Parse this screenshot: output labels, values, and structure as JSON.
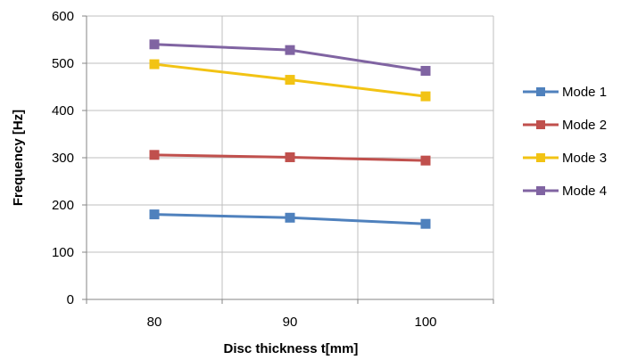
{
  "chart_data": {
    "type": "line",
    "xlabel": "Disc thickness t[mm]",
    "ylabel": "Frequency [Hz]",
    "categories": [
      "80",
      "90",
      "100"
    ],
    "ylim": [
      0,
      600
    ],
    "yticks": [
      "0",
      "100",
      "200",
      "300",
      "400",
      "500",
      "600"
    ],
    "grid": true,
    "legend_position": "right",
    "series": [
      {
        "name": "Mode 1",
        "color": "#4F81BD",
        "values": [
          180,
          173,
          160
        ]
      },
      {
        "name": "Mode 2",
        "color": "#C0504D",
        "values": [
          306,
          301,
          294
        ]
      },
      {
        "name": "Mode 3",
        "color": "#F2C314",
        "values": [
          498,
          465,
          430
        ]
      },
      {
        "name": "Mode 4",
        "color": "#8064A2",
        "values": [
          540,
          528,
          484
        ]
      }
    ]
  }
}
